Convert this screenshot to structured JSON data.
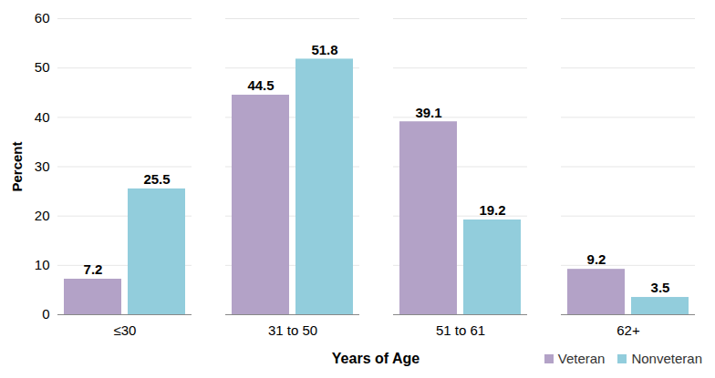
{
  "chart_data": {
    "type": "bar",
    "xlabel": "Years of Age",
    "ylabel": "Percent",
    "categories": [
      "≤30",
      "31 to 50",
      "51 to 61",
      "62+"
    ],
    "series": [
      {
        "name": "Veteran",
        "color": "#b3a2c7",
        "values": [
          7.2,
          44.5,
          39.1,
          9.2
        ]
      },
      {
        "name": "Nonveteran",
        "color": "#92cddc",
        "values": [
          25.5,
          51.8,
          19.2,
          3.5
        ]
      }
    ],
    "ylim": [
      0,
      60
    ],
    "yticks": [
      0,
      10,
      20,
      30,
      40,
      50,
      60
    ],
    "grid": true,
    "data_labels": true,
    "legend": "bottom right"
  }
}
